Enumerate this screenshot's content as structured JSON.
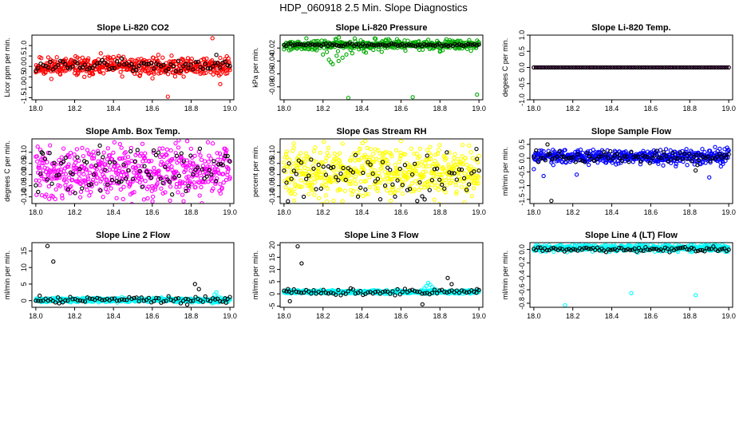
{
  "figure": {
    "title": "HDP_060918  2.5 Min. Slope Diagnostics"
  },
  "chart_data": [
    {
      "type": "scatter",
      "title": "Slope Li-820 CO2",
      "xlabel": "",
      "ylabel": "Licor ppm per min.",
      "xlim": [
        17.98,
        19.02
      ],
      "ylim": [
        -1.6,
        1.5
      ],
      "xticks": [
        18.0,
        18.2,
        18.4,
        18.6,
        18.8,
        19.0
      ],
      "yticks": [
        -1.5,
        -1.0,
        -0.5,
        0.0,
        0.5,
        1.0
      ],
      "series": [
        {
          "name": "all",
          "color": "#ff0000",
          "noise": {
            "n": 500,
            "base": 0.0,
            "spread": 0.22,
            "seed": 11
          },
          "points": [
            [
              18.25,
              -0.5
            ],
            [
              18.68,
              -1.45
            ],
            [
              18.91,
              1.35
            ],
            [
              18.95,
              -0.85
            ],
            [
              18.05,
              -0.3
            ],
            [
              18.4,
              0.45
            ]
          ]
        },
        {
          "name": "selected",
          "color": "#000000",
          "noise": {
            "n": 80,
            "base": 0.05,
            "spread": 0.15,
            "seed": 12
          },
          "points": [
            [
              18.93,
              0.55
            ],
            [
              18.5,
              -0.2
            ]
          ]
        }
      ]
    },
    {
      "type": "scatter",
      "title": "Slope Li-820 Pressure",
      "xlabel": "",
      "ylabel": "kPa per min.",
      "xlim": [
        17.98,
        19.02
      ],
      "ylim": [
        -0.1,
        0.0
      ],
      "xticks": [
        18.0,
        18.2,
        18.4,
        18.6,
        18.8,
        19.0
      ],
      "yticks": [
        -0.08,
        -0.06,
        -0.04,
        -0.02
      ],
      "series": [
        {
          "name": "all",
          "color": "#00aa00",
          "noise": {
            "n": 420,
            "base": -0.015,
            "spread": 0.004,
            "seed": 21
          },
          "points": [
            [
              18.2,
              -0.03
            ],
            [
              18.23,
              -0.038
            ],
            [
              18.25,
              -0.045
            ],
            [
              18.28,
              -0.04
            ],
            [
              18.3,
              -0.035
            ],
            [
              18.27,
              -0.032
            ],
            [
              18.35,
              -0.028
            ],
            [
              18.22,
              -0.026
            ],
            [
              18.32,
              -0.03
            ],
            [
              18.42,
              -0.027
            ],
            [
              18.24,
              -0.042
            ],
            [
              18.33,
              -0.097
            ],
            [
              18.66,
              -0.096
            ],
            [
              18.99,
              -0.092
            ]
          ]
        },
        {
          "name": "selected",
          "color": "#000000",
          "noise": {
            "n": 90,
            "base": -0.015,
            "spread": 0.001,
            "seed": 22
          },
          "points": []
        }
      ]
    },
    {
      "type": "scatter",
      "title": "Slope Li-820 Temp.",
      "xlabel": "",
      "ylabel": "degees C per min.",
      "xlim": [
        17.98,
        19.02
      ],
      "ylim": [
        -1.0,
        1.0
      ],
      "xticks": [
        18.0,
        18.2,
        18.4,
        18.6,
        18.8,
        19.0
      ],
      "yticks": [
        -1.0,
        -0.5,
        0.0,
        0.5,
        1.0
      ],
      "series": [
        {
          "name": "all",
          "color": "#ff00ff",
          "noise": {
            "n": 80,
            "base": 0.0,
            "spread": 0.0,
            "seed": 31
          },
          "points": []
        },
        {
          "name": "selected",
          "color": "#000000",
          "noise": {
            "n": 95,
            "base": 0.0,
            "spread": 0.0,
            "seed": 32
          },
          "points": []
        }
      ]
    },
    {
      "type": "scatter",
      "title": "Slope Amb. Box Temp.",
      "xlabel": "",
      "ylabel": "degrees C per min.",
      "xlim": [
        17.98,
        19.02
      ],
      "ylim": [
        -0.13,
        0.16
      ],
      "xticks": [
        18.0,
        18.2,
        18.4,
        18.6,
        18.8,
        19.0
      ],
      "yticks": [
        -0.1,
        -0.05,
        0.0,
        0.05,
        0.1
      ],
      "series": [
        {
          "name": "all",
          "color": "#ff00ff",
          "noise": {
            "n": 520,
            "base": 0.01,
            "spread": 0.055,
            "seed": 41
          },
          "points": [
            [
              18.72,
              0.14
            ],
            [
              18.78,
              0.15
            ],
            [
              18.1,
              -0.11
            ],
            [
              18.45,
              -0.11
            ]
          ]
        },
        {
          "name": "selected",
          "color": "#000000",
          "noise": {
            "n": 85,
            "base": 0.01,
            "spread": 0.05,
            "seed": 42
          },
          "points": [
            [
              18.33,
              0.13
            ],
            [
              18.03,
              0.1
            ]
          ]
        }
      ]
    },
    {
      "type": "scatter",
      "title": "Slope Gas Stream RH",
      "xlabel": "",
      "ylabel": "percent per min.",
      "xlim": [
        17.98,
        19.02
      ],
      "ylim": [
        -0.13,
        0.16
      ],
      "xticks": [
        18.0,
        18.2,
        18.4,
        18.6,
        18.8,
        19.0
      ],
      "yticks": [
        -0.1,
        -0.05,
        0.0,
        0.05,
        0.1
      ],
      "series": [
        {
          "name": "all",
          "color": "#ffff00",
          "noise": {
            "n": 560,
            "base": 0.01,
            "spread": 0.055,
            "seed": 51
          },
          "points": [
            [
              18.05,
              0.14
            ],
            [
              18.6,
              0.15
            ],
            [
              18.95,
              0.13
            ],
            [
              18.3,
              -0.12
            ]
          ]
        },
        {
          "name": "selected",
          "color": "#000000",
          "noise": {
            "n": 80,
            "base": 0.0,
            "spread": 0.05,
            "seed": 52
          },
          "points": [
            [
              18.02,
              -0.12
            ],
            [
              18.99,
              0.07
            ]
          ]
        }
      ]
    },
    {
      "type": "scatter",
      "title": "Slope Sample Flow",
      "xlabel": "",
      "ylabel": "ml/min per min.",
      "xlim": [
        17.98,
        19.02
      ],
      "ylim": [
        -1.65,
        0.7
      ],
      "xticks": [
        18.0,
        18.2,
        18.4,
        18.6,
        18.8,
        19.0
      ],
      "yticks": [
        -1.5,
        -1.0,
        -0.5,
        0.0,
        0.5
      ],
      "series": [
        {
          "name": "all",
          "color": "#0000ff",
          "noise": {
            "n": 480,
            "base": 0.05,
            "spread": 0.12,
            "seed": 61
          },
          "points": [
            [
              18.0,
              -0.4
            ],
            [
              18.05,
              -0.65
            ],
            [
              18.22,
              -0.6
            ],
            [
              18.85,
              -0.2
            ],
            [
              18.9,
              -0.7
            ],
            [
              18.93,
              0.4
            ],
            [
              18.96,
              -0.3
            ],
            [
              18.1,
              -0.25
            ]
          ]
        },
        {
          "name": "selected",
          "color": "#000000",
          "noise": {
            "n": 85,
            "base": 0.05,
            "spread": 0.1,
            "seed": 62
          },
          "points": [
            [
              18.07,
              0.5
            ],
            [
              18.09,
              -1.55
            ],
            [
              18.83,
              -0.45
            ],
            [
              18.84,
              -0.25
            ]
          ]
        }
      ]
    },
    {
      "type": "scatter",
      "title": "Slope Line 2 Flow",
      "xlabel": "",
      "ylabel": "ml/min per min.",
      "xlim": [
        17.98,
        19.02
      ],
      "ylim": [
        -2,
        17.5
      ],
      "xticks": [
        18.0,
        18.2,
        18.4,
        18.6,
        18.8,
        19.0
      ],
      "yticks": [
        0,
        5,
        10,
        15
      ],
      "series": [
        {
          "name": "all",
          "color": "#00ffff",
          "noise": {
            "n": 520,
            "base": 0.2,
            "spread": 0.3,
            "seed": 71
          },
          "points": [
            [
              18.93,
              2.5
            ],
            [
              18.92,
              1.8
            ],
            [
              18.94,
              1.2
            ],
            [
              18.91,
              -0.8
            ]
          ]
        },
        {
          "name": "selected",
          "color": "#000000",
          "noise": {
            "n": 80,
            "base": 0.3,
            "spread": 0.5,
            "seed": 72
          },
          "points": [
            [
              18.06,
              16.5
            ],
            [
              18.09,
              11.8
            ],
            [
              18.82,
              5.0
            ],
            [
              18.84,
              3.5
            ],
            [
              18.02,
              1.5
            ],
            [
              18.12,
              -0.8
            ],
            [
              18.78,
              -1.2
            ],
            [
              18.98,
              -0.6
            ]
          ]
        }
      ]
    },
    {
      "type": "scatter",
      "title": "Slope Line 3 Flow",
      "xlabel": "",
      "ylabel": "ml/min per min.",
      "xlim": [
        17.98,
        19.02
      ],
      "ylim": [
        -5.5,
        21
      ],
      "xticks": [
        18.0,
        18.2,
        18.4,
        18.6,
        18.8,
        19.0
      ],
      "yticks": [
        -5,
        0,
        5,
        10,
        15,
        20
      ],
      "series": [
        {
          "name": "all",
          "color": "#00ffff",
          "noise": {
            "n": 540,
            "base": 0.8,
            "spread": 0.35,
            "seed": 81
          },
          "points": [
            [
              18.74,
              4.5
            ],
            [
              18.75,
              3.8
            ],
            [
              18.73,
              3.2
            ],
            [
              18.76,
              2.8
            ],
            [
              18.72,
              2.4
            ],
            [
              18.77,
              2.0
            ]
          ]
        },
        {
          "name": "selected",
          "color": "#000000",
          "noise": {
            "n": 80,
            "base": 0.8,
            "spread": 0.6,
            "seed": 82
          },
          "points": [
            [
              18.07,
              19.5
            ],
            [
              18.09,
              12.5
            ],
            [
              18.84,
              6.5
            ],
            [
              18.86,
              4.0
            ],
            [
              18.02,
              2.0
            ],
            [
              18.03,
              -3.0
            ],
            [
              18.71,
              -4.3
            ],
            [
              18.99,
              2.0
            ]
          ]
        }
      ]
    },
    {
      "type": "scatter",
      "title": "Slope Line 4 (LT) Flow",
      "xlabel": "",
      "ylabel": "ml/min per min.",
      "xlim": [
        17.98,
        19.02
      ],
      "ylim": [
        -0.86,
        0.1
      ],
      "xticks": [
        18.0,
        18.2,
        18.4,
        18.6,
        18.8,
        19.0
      ],
      "yticks": [
        -0.8,
        -0.6,
        -0.4,
        -0.2,
        0.0
      ],
      "series": [
        {
          "name": "all",
          "color": "#00ffff",
          "noise": {
            "n": 500,
            "base": 0.02,
            "spread": 0.025,
            "seed": 91
          },
          "points": [
            [
              18.16,
              -0.83
            ],
            [
              18.5,
              -0.65
            ],
            [
              18.83,
              -0.68
            ]
          ]
        },
        {
          "name": "selected",
          "color": "#000000",
          "noise": {
            "n": 90,
            "base": 0.0,
            "spread": 0.02,
            "seed": 92
          },
          "points": []
        }
      ]
    }
  ]
}
